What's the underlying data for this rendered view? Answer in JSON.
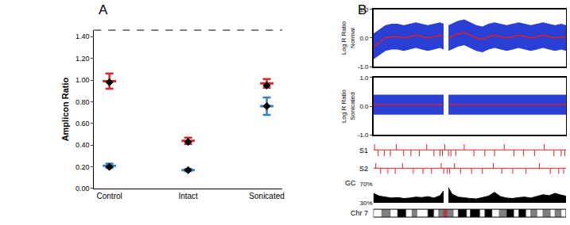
{
  "chart_data": [
    {
      "type": "scatter",
      "title": "A",
      "categories": [
        "Control",
        "Intact",
        "Sonicated"
      ],
      "ylabel": "Amplicon Ratio",
      "ylim": [
        0,
        1.46
      ],
      "yticks": [
        {
          "value": 0,
          "label": "0.00"
        },
        {
          "value": 0.2,
          "label": "0.20"
        },
        {
          "value": 0.4,
          "label": "0.40"
        },
        {
          "value": 0.6,
          "label": "0.60"
        },
        {
          "value": 0.8,
          "label": "0.80"
        },
        {
          "value": 1.0,
          "label": "1.00"
        },
        {
          "value": 1.2,
          "label": "1.20"
        },
        {
          "value": 1.4,
          "label": "1.40"
        }
      ],
      "grid": false,
      "series": [
        {
          "color": "#e0262a",
          "marker": "dash",
          "values": [
            0.99,
            0.44,
            0.97
          ],
          "errors": [
            0.07,
            0.03,
            0.04
          ]
        },
        {
          "color": "#3b7ec2",
          "marker": "dash",
          "values": [
            0.21,
            0.17,
            0.76
          ],
          "errors": [
            0.02,
            0.01,
            0.08
          ]
        },
        {
          "color": "#000000",
          "marker": "diamond",
          "values": [
            0.98,
            0.43,
            0.95
          ]
        },
        {
          "color": "#000000",
          "marker": "diamond",
          "values": [
            0.2,
            0.17,
            0.76
          ]
        }
      ]
    },
    {
      "type": "band",
      "title": "B",
      "ylabel": "Log R Ratio\nNormal",
      "xlim": [
        0,
        159
      ],
      "ylim": [
        -1,
        1
      ],
      "yticks": [
        {
          "value": -1,
          "label": "-1.0"
        },
        {
          "value": 0,
          "label": "0.0"
        },
        {
          "value": 1,
          "label": "1.0"
        }
      ],
      "tick_labels": "y",
      "grid": false,
      "x": [
        0,
        5,
        10,
        15,
        20,
        25,
        30,
        35,
        40,
        45,
        50,
        55,
        58,
        60,
        62,
        65,
        70,
        75,
        80,
        85,
        90,
        95,
        100,
        105,
        110,
        115,
        120,
        125,
        130,
        135,
        140,
        145,
        150,
        155,
        159
      ],
      "series": [
        {
          "type": "band",
          "color": "#2a3fd6",
          "lower": [
            -0.75,
            -0.6,
            -0.45,
            -0.4,
            -0.4,
            -0.45,
            -0.4,
            -0.35,
            -0.4,
            -0.45,
            -0.4,
            -0.35,
            -0.4,
            null,
            -0.45,
            -0.4,
            -0.3,
            -0.25,
            -0.35,
            -0.45,
            -0.5,
            -0.4,
            -0.35,
            -0.4,
            -0.45,
            -0.4,
            -0.35,
            -0.4,
            -0.45,
            -0.4,
            -0.35,
            -0.4,
            -0.45,
            -0.4,
            -0.45
          ],
          "upper": [
            0.15,
            0.3,
            0.45,
            0.5,
            0.5,
            0.45,
            0.5,
            0.55,
            0.5,
            0.45,
            0.5,
            0.55,
            0.5,
            null,
            0.45,
            0.5,
            0.6,
            0.65,
            0.55,
            0.45,
            0.4,
            0.5,
            0.55,
            0.5,
            0.45,
            0.5,
            0.55,
            0.5,
            0.45,
            0.5,
            0.55,
            0.5,
            0.45,
            0.5,
            0.45
          ]
        },
        {
          "type": "line",
          "color": "#e02020",
          "values": [
            -0.3,
            -0.15,
            0.0,
            0.05,
            0.05,
            0.0,
            0.05,
            0.1,
            0.05,
            0.0,
            0.05,
            0.1,
            0.05,
            null,
            0.0,
            0.05,
            0.15,
            0.2,
            0.1,
            0.0,
            -0.05,
            0.05,
            0.1,
            0.05,
            0.0,
            0.05,
            0.1,
            0.05,
            0.0,
            0.05,
            0.1,
            0.05,
            0.0,
            0.05,
            0.0
          ]
        }
      ]
    },
    {
      "type": "band",
      "ylabel": "Log R Ratio\nSonicated",
      "xlim": [
        0,
        159
      ],
      "ylim": [
        -1,
        1
      ],
      "yticks": [
        {
          "value": -1,
          "label": "-1.0"
        },
        {
          "value": 0,
          "label": "0.0"
        },
        {
          "value": 1,
          "label": "1.0"
        }
      ],
      "tick_labels": "y",
      "grid": false,
      "x": [
        0,
        5,
        10,
        15,
        20,
        25,
        30,
        35,
        40,
        45,
        50,
        55,
        58,
        60,
        62,
        65,
        70,
        75,
        80,
        85,
        90,
        95,
        100,
        105,
        110,
        115,
        120,
        125,
        130,
        135,
        140,
        145,
        150,
        155,
        159
      ],
      "series": [
        {
          "type": "band",
          "color": "#2a3fd6",
          "lower": [
            -0.3,
            -0.3,
            -0.3,
            -0.3,
            -0.3,
            -0.3,
            -0.3,
            -0.3,
            -0.3,
            -0.3,
            -0.3,
            -0.3,
            -0.3,
            null,
            -0.3,
            -0.3,
            -0.3,
            -0.3,
            -0.3,
            -0.3,
            -0.3,
            -0.3,
            -0.3,
            -0.3,
            -0.3,
            -0.3,
            -0.3,
            -0.3,
            -0.3,
            -0.3,
            -0.3,
            -0.3,
            -0.3,
            -0.3,
            -0.3
          ],
          "upper": [
            0.4,
            0.4,
            0.4,
            0.4,
            0.4,
            0.4,
            0.4,
            0.4,
            0.4,
            0.4,
            0.4,
            0.4,
            0.4,
            null,
            0.4,
            0.4,
            0.4,
            0.4,
            0.4,
            0.4,
            0.4,
            0.4,
            0.4,
            0.4,
            0.4,
            0.4,
            0.4,
            0.4,
            0.4,
            0.4,
            0.4,
            0.4,
            0.4,
            0.4,
            0.4
          ]
        },
        {
          "type": "line",
          "color": "#e02020",
          "values": [
            0.05,
            0.05,
            0.05,
            0.05,
            0.05,
            0.05,
            0.05,
            0.05,
            0.05,
            0.05,
            0.05,
            0.05,
            0.05,
            null,
            0.05,
            0.05,
            0.05,
            0.05,
            0.05,
            0.05,
            0.05,
            0.05,
            0.05,
            0.05,
            0.05,
            0.05,
            0.05,
            0.05,
            0.05,
            0.05,
            0.05,
            0.05,
            0.05,
            0.05,
            0.05
          ]
        }
      ]
    },
    {
      "type": "track",
      "ylabel": "S1",
      "xlim": [
        0,
        159
      ],
      "color": "#e02020",
      "tick_labels": false,
      "x": [
        1,
        4,
        9,
        14,
        19,
        25,
        31,
        38,
        44,
        50,
        55,
        57,
        59,
        62,
        64,
        68,
        75,
        83,
        92,
        100,
        108,
        116,
        124,
        133,
        141,
        149,
        155,
        158
      ]
    },
    {
      "type": "track",
      "ylabel": "S2",
      "xlim": [
        0,
        159
      ],
      "color": "#e02020",
      "tick_labels": false,
      "x": [
        2,
        6,
        12,
        18,
        24,
        33,
        41,
        48,
        56,
        58,
        61,
        63,
        67,
        72,
        81,
        90,
        99,
        106,
        115,
        126,
        137,
        146,
        153,
        157
      ]
    },
    {
      "type": "area",
      "ylabel": "GC",
      "xlim": [
        0,
        159
      ],
      "ylim": [
        30,
        70
      ],
      "color": "#000000",
      "yticks": [
        {
          "value": 70,
          "label": "70%"
        },
        {
          "value": 30,
          "label": "30%"
        }
      ],
      "tick_labels": "y",
      "x": [
        0,
        5,
        10,
        15,
        20,
        25,
        30,
        35,
        40,
        45,
        50,
        55,
        58,
        60,
        62,
        65,
        70,
        75,
        80,
        85,
        90,
        95,
        100,
        105,
        110,
        115,
        120,
        125,
        130,
        135,
        140,
        145,
        150,
        155,
        159
      ],
      "values": [
        50,
        44,
        42,
        40,
        41,
        39,
        40,
        42,
        41,
        43,
        40,
        45,
        55,
        null,
        62,
        48,
        42,
        40,
        39,
        38,
        41,
        44,
        52,
        43,
        40,
        39,
        41,
        42,
        40,
        44,
        47,
        45,
        50,
        46,
        44
      ]
    },
    {
      "type": "ideogram",
      "ylabel": "Chr 7",
      "xlim": [
        0,
        159
      ],
      "tick_labels": false,
      "bands": [
        {
          "start": 0,
          "end": 7,
          "color": "#ffffff"
        },
        {
          "start": 7,
          "end": 14,
          "color": "#808080"
        },
        {
          "start": 14,
          "end": 20,
          "color": "#ffffff"
        },
        {
          "start": 20,
          "end": 27,
          "color": "#000000"
        },
        {
          "start": 27,
          "end": 32,
          "color": "#ffffff"
        },
        {
          "start": 32,
          "end": 36,
          "color": "#808080"
        },
        {
          "start": 36,
          "end": 45,
          "color": "#ffffff"
        },
        {
          "start": 45,
          "end": 50,
          "color": "#000000"
        },
        {
          "start": 50,
          "end": 54,
          "color": "#ffffff"
        },
        {
          "start": 54,
          "end": 58,
          "color": "#808080"
        },
        {
          "start": 58,
          "end": 61,
          "color": "#cc3333"
        },
        {
          "start": 61,
          "end": 66,
          "color": "#808080"
        },
        {
          "start": 66,
          "end": 70,
          "color": "#ffffff"
        },
        {
          "start": 70,
          "end": 77,
          "color": "#000000"
        },
        {
          "start": 77,
          "end": 80,
          "color": "#ffffff"
        },
        {
          "start": 80,
          "end": 88,
          "color": "#000000"
        },
        {
          "start": 88,
          "end": 92,
          "color": "#ffffff"
        },
        {
          "start": 92,
          "end": 98,
          "color": "#000000"
        },
        {
          "start": 98,
          "end": 104,
          "color": "#ffffff"
        },
        {
          "start": 104,
          "end": 110,
          "color": "#808080"
        },
        {
          "start": 110,
          "end": 116,
          "color": "#000000"
        },
        {
          "start": 116,
          "end": 120,
          "color": "#ffffff"
        },
        {
          "start": 120,
          "end": 126,
          "color": "#000000"
        },
        {
          "start": 126,
          "end": 130,
          "color": "#ffffff"
        },
        {
          "start": 130,
          "end": 135,
          "color": "#808080"
        },
        {
          "start": 135,
          "end": 140,
          "color": "#ffffff"
        },
        {
          "start": 140,
          "end": 146,
          "color": "#808080"
        },
        {
          "start": 146,
          "end": 150,
          "color": "#ffffff"
        },
        {
          "start": 150,
          "end": 155,
          "color": "#808080"
        },
        {
          "start": 155,
          "end": 159,
          "color": "#ffffff"
        }
      ]
    }
  ]
}
